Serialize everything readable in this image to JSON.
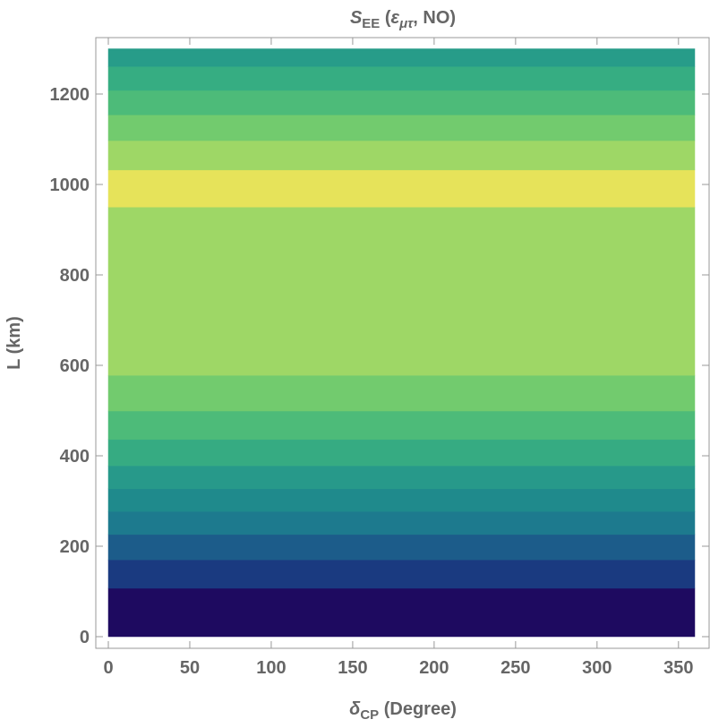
{
  "chart_data": {
    "type": "contour",
    "title": [
      {
        "text": "S",
        "italic": true
      },
      {
        "text": "EE",
        "sub": true
      },
      {
        "text": " ("
      },
      {
        "text": "ε",
        "italic": true
      },
      {
        "text": "μτ",
        "sub": true,
        "italic": true
      },
      {
        "text": ", NO)"
      }
    ],
    "xlabel": [
      {
        "text": "δ",
        "italic": true
      },
      {
        "text": "CP",
        "sub": true
      },
      {
        "text": " (Degree)"
      }
    ],
    "ylabel": "L (km)",
    "xlim": [
      0,
      360
    ],
    "xticks": [
      0,
      50,
      100,
      150,
      200,
      250,
      300,
      350
    ],
    "ylim": [
      0,
      1300
    ],
    "yticks": [
      0,
      200,
      400,
      600,
      800,
      1000,
      1200
    ],
    "boundaries": [
      0,
      107,
      170,
      226,
      277,
      327,
      378,
      436,
      499,
      578,
      950,
      1032,
      1097,
      1154,
      1208,
      1261,
      1300
    ],
    "colors": [
      "#1e0a60",
      "#1a3a80",
      "#1c5c8a",
      "#1d7a8e",
      "#1f8a8c",
      "#27998a",
      "#36ab82",
      "#4dbb79",
      "#72cb6e",
      "#9ed766",
      "#e6e35a",
      "#9ed766",
      "#72cb6e",
      "#4dbb79",
      "#36ad82",
      "#279c89",
      "#1f8e8d"
    ]
  }
}
